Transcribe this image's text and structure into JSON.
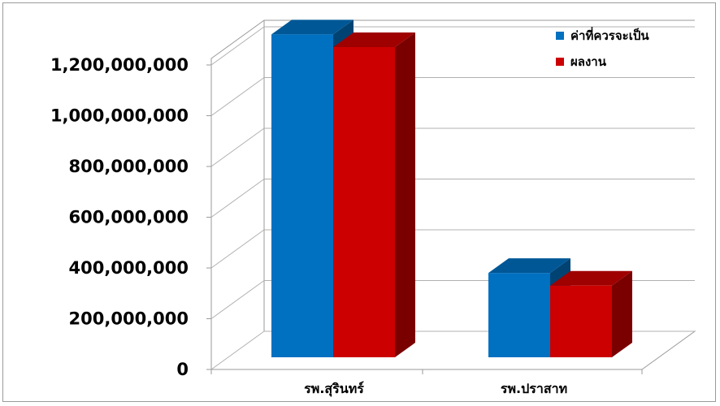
{
  "chart_data": {
    "type": "bar",
    "style": "3d-clustered",
    "categories": [
      "รพ.สุรินทร์",
      "รพ.ปราสาท"
    ],
    "series": [
      {
        "name": "ค่าที่ควรจะเป็น",
        "values": [
          1170000000,
          230000000
        ],
        "color": "#0070c0"
      },
      {
        "name": "ผลงาน",
        "values": [
          1120000000,
          180000000
        ],
        "color": "#cc0000"
      }
    ],
    "ylim": [
      0,
      1200000000
    ],
    "yticks": [
      "0",
      "200,000,000",
      "400,000,000",
      "600,000,000",
      "800,000,000",
      "1,000,000,000",
      "1,200,000,000"
    ],
    "grid": true,
    "legend_position": "top-right"
  }
}
